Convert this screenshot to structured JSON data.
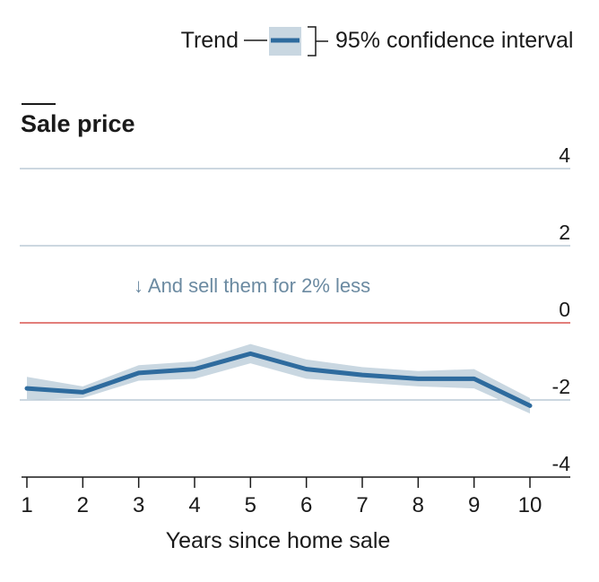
{
  "legend": {
    "trend_label": "Trend",
    "ci_label": "95% confidence interval"
  },
  "annotation": "↓ And sell them for 2% less",
  "colors": {
    "trend_line": "#2e6b9e",
    "ci_band": "#c9d7e1",
    "gridline": "#aebfcd",
    "zero_line": "#d9534f",
    "axis": "#1a1a1a",
    "annotation": "#6b8aa1",
    "text": "#1a1a1a"
  },
  "chart_data": {
    "type": "line",
    "title": "Sale price",
    "xlabel": "Years since home sale",
    "ylabel": "",
    "x": [
      1,
      2,
      3,
      4,
      5,
      6,
      7,
      8,
      9,
      10
    ],
    "xticks": [
      "1",
      "2",
      "3",
      "4",
      "5",
      "6",
      "7",
      "8",
      "9",
      "10"
    ],
    "yticks": [
      "4",
      "2",
      "0",
      "-2",
      "-4"
    ],
    "ylim": [
      -4,
      4
    ],
    "series": [
      {
        "values": [
          -1.7,
          -1.8,
          -1.3,
          -1.2,
          -0.8,
          -1.2,
          -1.35,
          -1.45,
          -1.45,
          -2.15
        ],
        "ci_lower": [
          -2.0,
          -1.95,
          -1.5,
          -1.45,
          -1.05,
          -1.45,
          -1.55,
          -1.65,
          -1.7,
          -2.35
        ],
        "ci_upper": [
          -1.4,
          -1.65,
          -1.1,
          -1.0,
          -0.55,
          -0.95,
          -1.15,
          -1.25,
          -1.2,
          -1.95
        ]
      }
    ],
    "grid": true,
    "legend_position": "top-right"
  }
}
